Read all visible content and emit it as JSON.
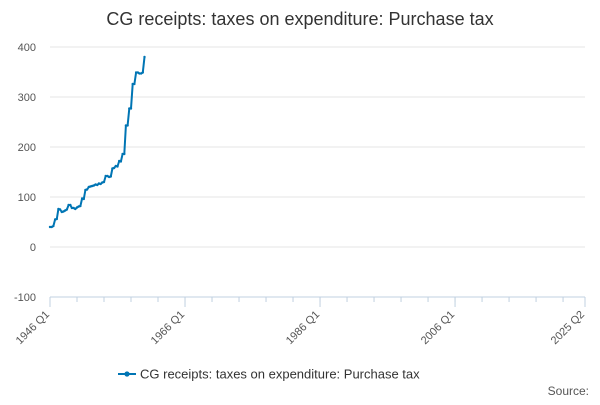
{
  "chart_data": {
    "type": "line",
    "title": "CG receipts: taxes on expenditure: Purchase tax",
    "xlabel": "",
    "ylabel": "",
    "ylim": [
      -100,
      400
    ],
    "yticks": [
      -100,
      0,
      100,
      200,
      300,
      400
    ],
    "xlim": [
      "1946 Q1",
      "2025 Q2"
    ],
    "xticks": [
      "1946 Q1",
      "1966 Q1",
      "1986 Q1",
      "2006 Q1",
      "2025 Q2"
    ],
    "grid": "horizontal",
    "legend": "bottom-center",
    "color": "#0075b4",
    "series": [
      {
        "name": "CG receipts: taxes on expenditure: Purchase tax",
        "points": [
          [
            "1946 Q1",
            40
          ],
          [
            "1946 Q2",
            40
          ],
          [
            "1946 Q3",
            42
          ],
          [
            "1946 Q4",
            55
          ],
          [
            "1947 Q1",
            56
          ],
          [
            "1947 Q2",
            76
          ],
          [
            "1947 Q3",
            75
          ],
          [
            "1947 Q4",
            70
          ],
          [
            "1948 Q1",
            71
          ],
          [
            "1948 Q2",
            73
          ],
          [
            "1948 Q3",
            75
          ],
          [
            "1948 Q4",
            84
          ],
          [
            "1949 Q1",
            84
          ],
          [
            "1949 Q2",
            78
          ],
          [
            "1949 Q3",
            78
          ],
          [
            "1949 Q4",
            76
          ],
          [
            "1950 Q1",
            79
          ],
          [
            "1950 Q2",
            81
          ],
          [
            "1950 Q3",
            82
          ],
          [
            "1950 Q4",
            97
          ],
          [
            "1951 Q1",
            96
          ],
          [
            "1951 Q2",
            114
          ],
          [
            "1951 Q3",
            115
          ],
          [
            "1951 Q4",
            120
          ],
          [
            "1952 Q1",
            121
          ],
          [
            "1952 Q2",
            122
          ],
          [
            "1952 Q3",
            123
          ],
          [
            "1952 Q4",
            125
          ],
          [
            "1953 Q1",
            124
          ],
          [
            "1953 Q2",
            127
          ],
          [
            "1953 Q3",
            126
          ],
          [
            "1953 Q4",
            129
          ],
          [
            "1954 Q1",
            130
          ],
          [
            "1954 Q2",
            142
          ],
          [
            "1954 Q3",
            142
          ],
          [
            "1954 Q4",
            140
          ],
          [
            "1955 Q1",
            141
          ],
          [
            "1955 Q2",
            157
          ],
          [
            "1955 Q3",
            158
          ],
          [
            "1955 Q4",
            162
          ],
          [
            "1956 Q1",
            161
          ],
          [
            "1956 Q2",
            172
          ],
          [
            "1956 Q3",
            171
          ],
          [
            "1956 Q4",
            186
          ],
          [
            "1957 Q1",
            186
          ],
          [
            "1957 Q2",
            243
          ],
          [
            "1957 Q3",
            243
          ],
          [
            "1957 Q4",
            277
          ],
          [
            "1958 Q1",
            277
          ],
          [
            "1958 Q2",
            326
          ],
          [
            "1958 Q3",
            326
          ],
          [
            "1958 Q4",
            349
          ],
          [
            "1959 Q1",
            349
          ],
          [
            "1959 Q2",
            347
          ],
          [
            "1959 Q3",
            347
          ],
          [
            "1959 Q4",
            349
          ],
          [
            "1960 Q1",
            380
          ]
        ]
      }
    ],
    "source_label": "Source:"
  }
}
